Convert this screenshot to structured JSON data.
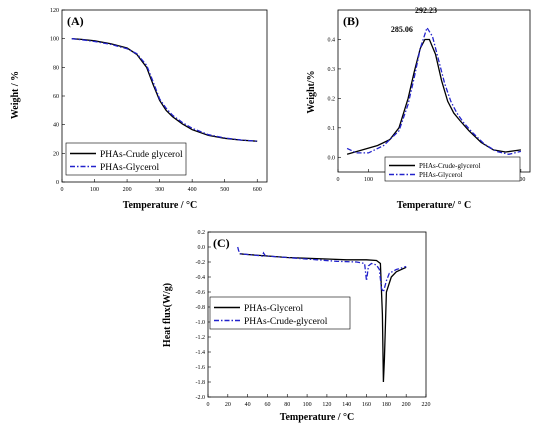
{
  "chart_data": [
    {
      "panel_label": "(A)",
      "type": "line",
      "xlabel": "Temperature / °C",
      "ylabel": "Weight / %",
      "xlim": [
        0,
        630
      ],
      "ylim": [
        0,
        120
      ],
      "xticks": [
        0,
        100,
        200,
        300,
        400,
        500,
        600
      ],
      "yticks": [
        0,
        20,
        40,
        60,
        80,
        100,
        120
      ],
      "legend_position": "bottom-left",
      "series": [
        {
          "name": "PHAs-Crude glycerol",
          "color": "#000000",
          "style": "solid",
          "x": [
            30,
            60,
            100,
            150,
            200,
            230,
            260,
            280,
            300,
            320,
            340,
            370,
            400,
            450,
            500,
            550,
            600
          ],
          "y": [
            100,
            99.5,
            98.5,
            96.5,
            93.5,
            89,
            80,
            68,
            57,
            50,
            45.5,
            40.5,
            36.5,
            32.5,
            30.5,
            29.2,
            28.5
          ]
        },
        {
          "name": "PHAs-Glycerol",
          "color": "#2222cc",
          "style": "dashdot",
          "x": [
            30,
            60,
            100,
            150,
            200,
            230,
            260,
            280,
            300,
            320,
            340,
            370,
            400,
            450,
            500,
            550,
            600
          ],
          "y": [
            100,
            99.3,
            98,
            96,
            93,
            89.5,
            81.5,
            70,
            58,
            51.5,
            46.5,
            41.5,
            37.5,
            33,
            30.8,
            29.3,
            28.5
          ]
        }
      ]
    },
    {
      "panel_label": "(B)",
      "type": "line",
      "xlabel": "Temperature/ ° C",
      "ylabel": "Weight/%",
      "xlim": [
        0,
        630
      ],
      "ylim": [
        -0.05,
        0.5
      ],
      "xticks": [
        0,
        100,
        200,
        300,
        400,
        500,
        600
      ],
      "yticks": [
        0.0,
        0.1,
        0.2,
        0.3,
        0.4
      ],
      "legend_position": "bottom-right",
      "annotations": [
        {
          "text": "292.23",
          "x": 292,
          "y": 0.47
        },
        {
          "text": "285.06",
          "x": 285,
          "y": 0.415
        }
      ],
      "series": [
        {
          "name": "PHAs-Crude-glycerol",
          "color": "#000000",
          "style": "solid",
          "x": [
            30,
            80,
            130,
            170,
            200,
            230,
            250,
            270,
            285,
            300,
            320,
            340,
            360,
            380,
            400,
            430,
            470,
            510,
            550,
            600
          ],
          "y": [
            0.01,
            0.025,
            0.04,
            0.06,
            0.1,
            0.2,
            0.29,
            0.37,
            0.4,
            0.4,
            0.35,
            0.26,
            0.19,
            0.15,
            0.125,
            0.09,
            0.05,
            0.025,
            0.018,
            0.025
          ]
        },
        {
          "name": "PHAs-Glycerol",
          "color": "#2222cc",
          "style": "dashdot",
          "x": [
            30,
            60,
            100,
            150,
            200,
            230,
            250,
            270,
            292,
            310,
            330,
            350,
            370,
            390,
            410,
            440,
            480,
            520,
            560,
            600
          ],
          "y": [
            0.03,
            0.015,
            0.015,
            0.04,
            0.09,
            0.18,
            0.27,
            0.37,
            0.44,
            0.41,
            0.33,
            0.25,
            0.19,
            0.15,
            0.12,
            0.085,
            0.045,
            0.02,
            0.01,
            0.02
          ]
        }
      ]
    },
    {
      "panel_label": "(C)",
      "type": "line",
      "xlabel": "Temperature / °C",
      "ylabel": "Heat flux(W/g)",
      "xlim": [
        0,
        220
      ],
      "ylim": [
        -2.0,
        0.2
      ],
      "xticks": [
        0,
        20,
        40,
        60,
        80,
        100,
        120,
        140,
        160,
        180,
        200,
        220
      ],
      "yticks": [
        0.2,
        0.0,
        -0.2,
        -0.4,
        -0.6,
        -0.8,
        -1.0,
        -1.2,
        -1.4,
        -1.6,
        -1.8,
        -2.0
      ],
      "legend_position": "middle-left",
      "series": [
        {
          "name": "PHAs-Glycerol",
          "color": "#000000",
          "style": "solid",
          "x": [
            32,
            40,
            60,
            80,
            100,
            120,
            140,
            160,
            170,
            174,
            176,
            177,
            178,
            180,
            185,
            190,
            200
          ],
          "y": [
            -0.09,
            -0.1,
            -0.12,
            -0.14,
            -0.15,
            -0.16,
            -0.17,
            -0.17,
            -0.18,
            -0.22,
            -0.9,
            -1.8,
            -1.5,
            -0.6,
            -0.4,
            -0.33,
            -0.27
          ]
        },
        {
          "name": "PHAs-Crude-glycerol",
          "color": "#2222cc",
          "style": "dashdot",
          "x": [
            30,
            31,
            33,
            40,
            55,
            56,
            58,
            70,
            90,
            110,
            130,
            150,
            158,
            160,
            162,
            165,
            170,
            173,
            175,
            177,
            180,
            183,
            190,
            200
          ],
          "y": [
            0.0,
            -0.05,
            -0.09,
            -0.1,
            -0.12,
            -0.08,
            -0.12,
            -0.13,
            -0.15,
            -0.17,
            -0.19,
            -0.2,
            -0.22,
            -0.45,
            -0.25,
            -0.22,
            -0.24,
            -0.3,
            -0.55,
            -0.6,
            -0.45,
            -0.35,
            -0.3,
            -0.26
          ]
        }
      ]
    }
  ]
}
